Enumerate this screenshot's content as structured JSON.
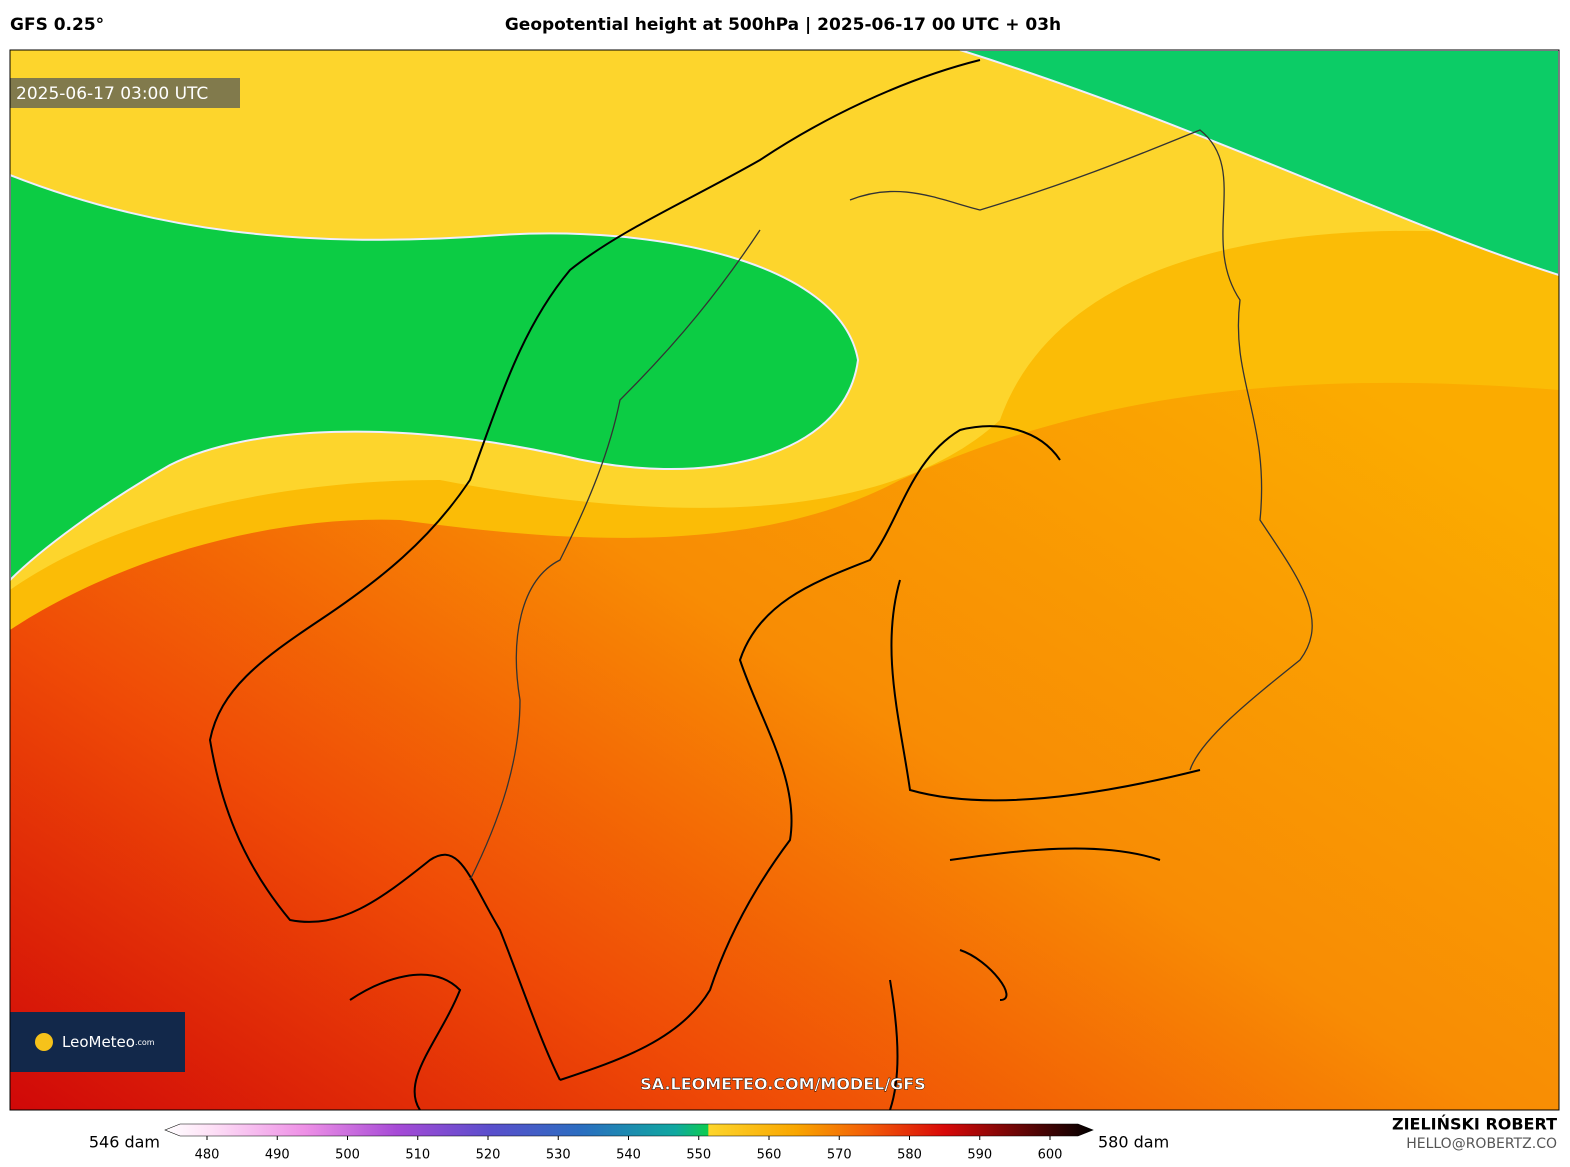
{
  "header": {
    "model": "GFS 0.25°",
    "title": "Geopotential height at 500hPa | 2025-06-17 00 UTC + 03h"
  },
  "map": {
    "timestamp": "2025-06-17 03:00 UTC",
    "logo": "LeoMeteo",
    "logo_suffix": ".com",
    "watermark": "SA.LEOMETEO.COM/MODEL/GFS"
  },
  "legend": {
    "min_label": "546 dam",
    "max_label": "580 dam",
    "ticks": [
      480,
      490,
      500,
      510,
      520,
      530,
      540,
      550,
      560,
      570,
      580,
      590,
      600
    ]
  },
  "footer": {
    "author": "ZIELIŃSKI ROBERT",
    "email": "HELLO@ROBERTZ.CO"
  }
}
